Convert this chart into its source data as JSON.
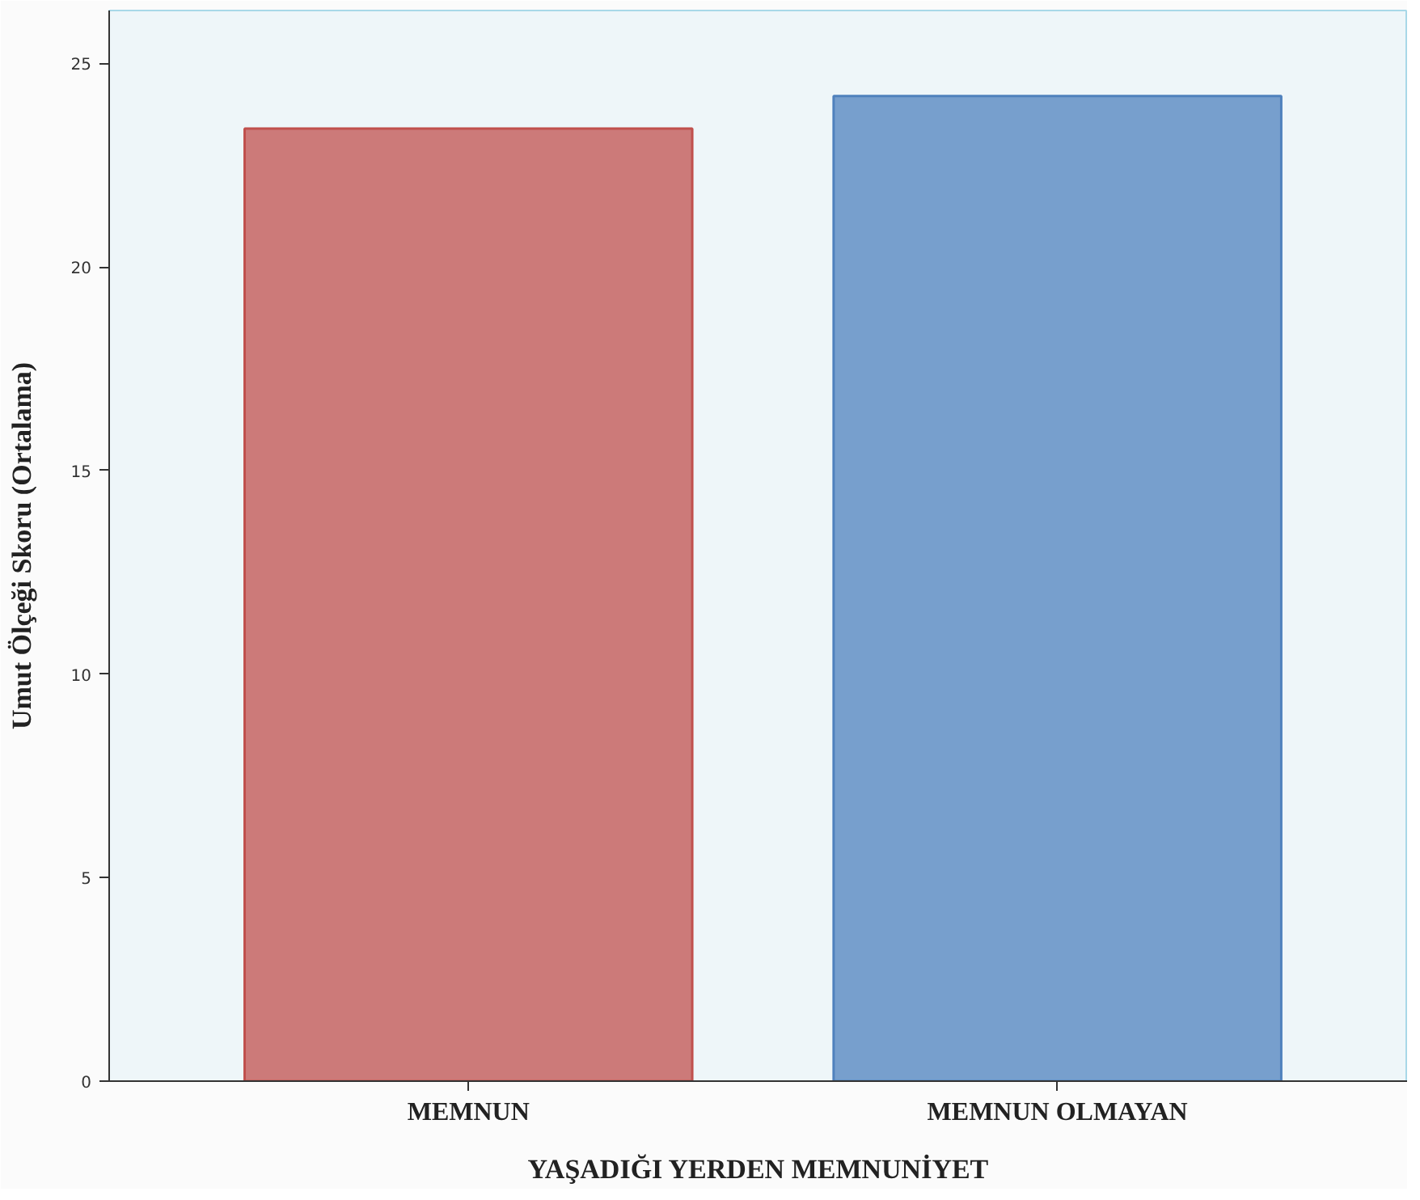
{
  "chart_data": {
    "type": "bar",
    "xlabel": "YAŞADIĞI YERDEN MEMNUNİYET",
    "ylabel": "Umut Ölçeği Skoru (Ortalama)",
    "categories": [
      "MEMNUN",
      "MEMNUN OLMAYAN"
    ],
    "values": [
      23.4,
      24.2
    ],
    "colors": [
      "#c0504d",
      "#4f81bd"
    ],
    "ylim": [
      0,
      26.3
    ],
    "yticks": [
      0,
      5,
      10,
      15,
      20,
      25
    ],
    "grid": false
  }
}
